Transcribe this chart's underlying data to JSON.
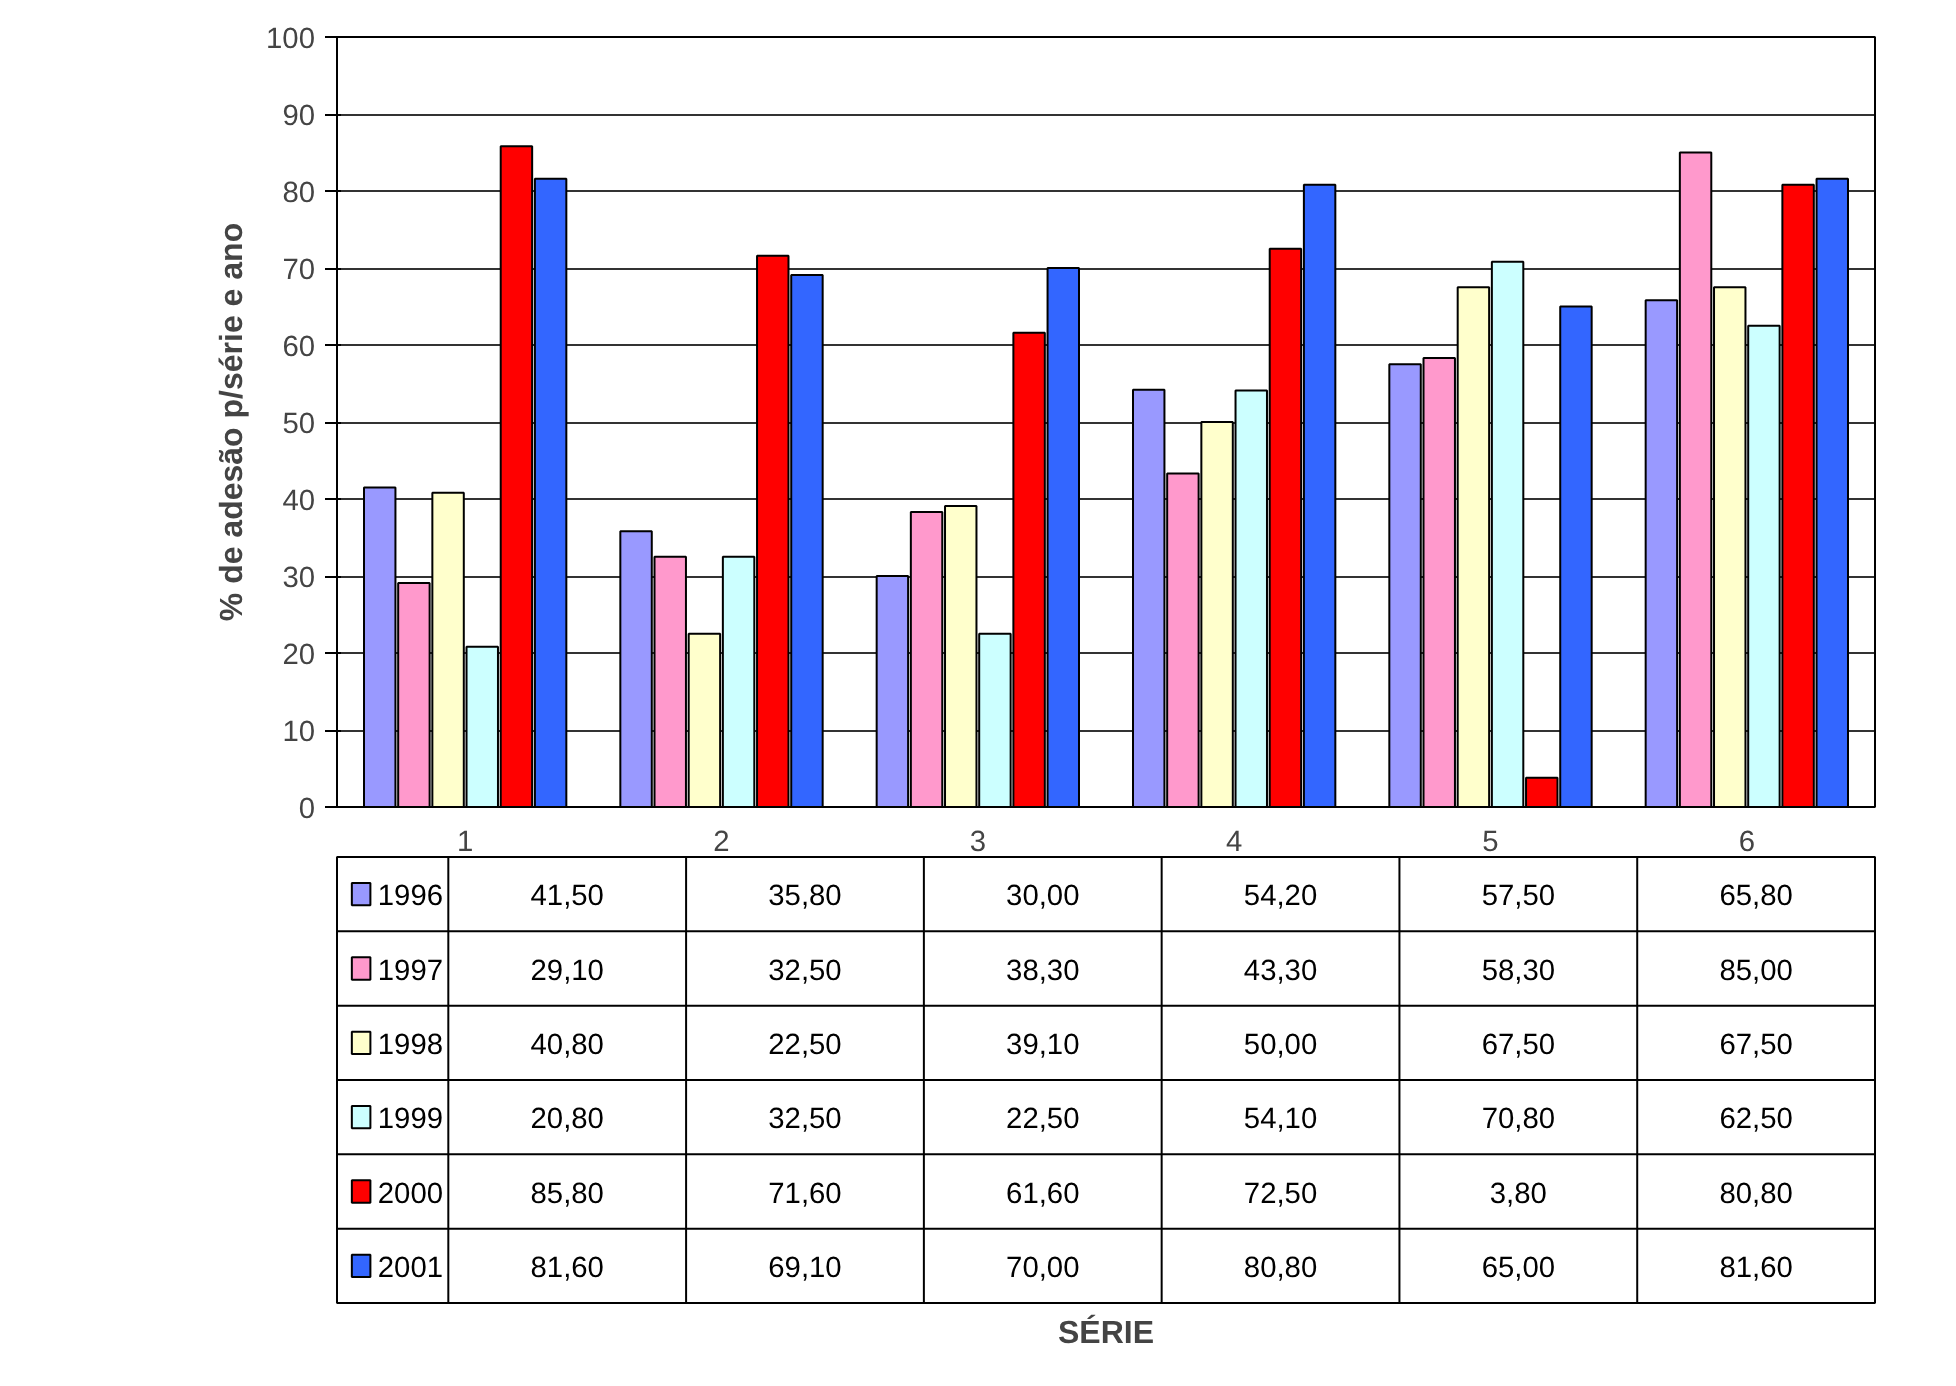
{
  "chart_data": {
    "type": "bar",
    "ylabel": "% de adesão p/série e ano",
    "annotations": [
      "SÉRIE"
    ],
    "categories": [
      "1",
      "2",
      "3",
      "4",
      "5",
      "6"
    ],
    "series": [
      {
        "name": "1996",
        "color": "#9999ff",
        "values": [
          41.5,
          35.8,
          30.0,
          54.2,
          57.5,
          65.8
        ],
        "value_labels": [
          "41,50",
          "35,80",
          "30,00",
          "54,20",
          "57,50",
          "65,80"
        ]
      },
      {
        "name": "1997",
        "color": "#ff99cc",
        "values": [
          29.1,
          32.5,
          38.3,
          43.3,
          58.3,
          85.0
        ],
        "value_labels": [
          "29,10",
          "32,50",
          "38,30",
          "43,30",
          "58,30",
          "85,00"
        ]
      },
      {
        "name": "1998",
        "color": "#ffffcc",
        "values": [
          40.8,
          22.5,
          39.1,
          50.0,
          67.5,
          67.5
        ],
        "value_labels": [
          "40,80",
          "22,50",
          "39,10",
          "50,00",
          "67,50",
          "67,50"
        ]
      },
      {
        "name": "1999",
        "color": "#ccffff",
        "values": [
          20.8,
          32.5,
          22.5,
          54.1,
          70.8,
          62.5
        ],
        "value_labels": [
          "20,80",
          "32,50",
          "22,50",
          "54,10",
          "70,80",
          "62,50"
        ]
      },
      {
        "name": "2000",
        "color": "#ff0000",
        "values": [
          85.8,
          71.6,
          61.6,
          72.5,
          3.8,
          80.8
        ],
        "value_labels": [
          "85,80",
          "71,60",
          "61,60",
          "72,50",
          "3,80",
          "80,80"
        ]
      },
      {
        "name": "2001",
        "color": "#3366ff",
        "values": [
          81.6,
          69.1,
          70.0,
          80.8,
          65.0,
          81.6
        ],
        "value_labels": [
          "81,60",
          "69,10",
          "70,00",
          "80,80",
          "65,00",
          "81,60"
        ]
      }
    ],
    "ylim": [
      0,
      100
    ],
    "yticks": [
      0,
      10,
      20,
      30,
      40,
      50,
      60,
      70,
      80,
      90,
      100
    ],
    "grid": "y",
    "legend": "bottom left"
  }
}
